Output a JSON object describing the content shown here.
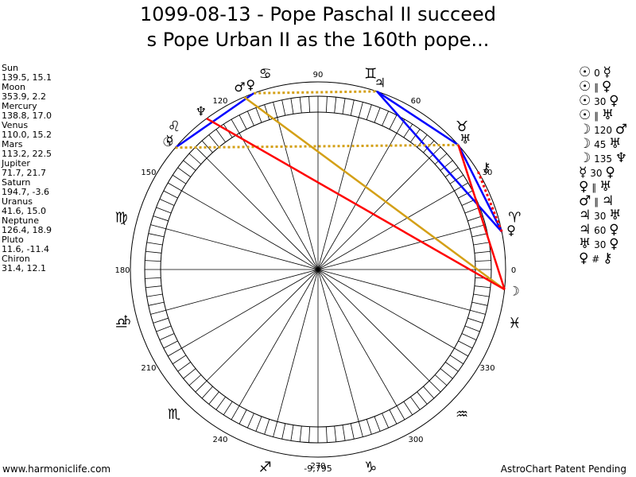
{
  "title_line1": "1099-08-13 - Pope Paschal II succeed",
  "title_line2": "s Pope Urban II as the 160th pope...",
  "planets": [
    {
      "name": "Sun",
      "values": "139.5, 15.1"
    },
    {
      "name": "Moon",
      "values": "353.9, 2.2"
    },
    {
      "name": "Mercury",
      "values": "138.8, 17.0"
    },
    {
      "name": "Venus",
      "values": "110.0, 15.2"
    },
    {
      "name": "Mars",
      "values": "113.2, 22.5"
    },
    {
      "name": "Jupiter",
      "values": "71.7, 21.7"
    },
    {
      "name": "Saturn",
      "values": "194.7, -3.6"
    },
    {
      "name": "Uranus",
      "values": "41.6, 15.0"
    },
    {
      "name": "Neptune",
      "values": "126.4, 18.9"
    },
    {
      "name": "Pluto",
      "values": "11.6, -11.4"
    },
    {
      "name": "Chiron",
      "values": "31.4, 12.1"
    }
  ],
  "aspects": [
    {
      "p1": "☉",
      "aspect": "0",
      "p2": "☿",
      "p1_icon": "sun-icon",
      "p2_icon": "mercury-icon"
    },
    {
      "p1": "☉",
      "aspect": "∥",
      "p2": "♀",
      "p1_icon": "sun-icon",
      "p2_icon": "venus-icon"
    },
    {
      "p1": "☉",
      "aspect": "30",
      "p2": "♀",
      "p1_icon": "sun-icon",
      "p2_icon": "venus-icon"
    },
    {
      "p1": "☉",
      "aspect": "∥",
      "p2": "♅",
      "p1_icon": "sun-icon",
      "p2_icon": "uranus-icon"
    },
    {
      "p1": "☽",
      "aspect": "120",
      "p2": "♂",
      "p1_icon": "moon-icon",
      "p2_icon": "mars-icon"
    },
    {
      "p1": "☽",
      "aspect": "45",
      "p2": "♅",
      "p1_icon": "moon-icon",
      "p2_icon": "uranus-icon"
    },
    {
      "p1": "☽",
      "aspect": "135",
      "p2": "♆",
      "p1_icon": "moon-icon",
      "p2_icon": "neptune-icon"
    },
    {
      "p1": "☿",
      "aspect": "30",
      "p2": "♀",
      "p1_icon": "mercury-icon",
      "p2_icon": "venus-icon"
    },
    {
      "p1": "♀",
      "aspect": "∥",
      "p2": "♅",
      "p1_icon": "venus-icon",
      "p2_icon": "uranus-icon"
    },
    {
      "p1": "♂",
      "aspect": "∥",
      "p2": "♃",
      "p1_icon": "mars-icon",
      "p2_icon": "jupiter-icon"
    },
    {
      "p1": "♃",
      "aspect": "30",
      "p2": "♅",
      "p1_icon": "jupiter-icon",
      "p2_icon": "uranus-icon"
    },
    {
      "p1": "♃",
      "aspect": "60",
      "p2": "♀",
      "p1_icon": "jupiter-icon",
      "p2_icon": "venus-icon"
    },
    {
      "p1": "♅",
      "aspect": "30",
      "p2": "♀",
      "p1_icon": "uranus-icon",
      "p2_icon": "venus-icon"
    },
    {
      "p1": "♀",
      "aspect": "#",
      "p2": "⚷",
      "p1_icon": "venus-icon",
      "p2_icon": "chiron-icon"
    }
  ],
  "wheel": {
    "degree_labels": [
      "0",
      "30",
      "60",
      "90",
      "120",
      "150",
      "180",
      "210",
      "240",
      "270",
      "300",
      "330"
    ],
    "signs": [
      "♈",
      "♉",
      "♊",
      "♋",
      "♌",
      "♍",
      "♎",
      "♏",
      "♐",
      "♑",
      "♒",
      "♓"
    ],
    "sign_names": [
      "aries-icon",
      "taurus-icon",
      "gemini-icon",
      "cancer-icon",
      "leo-icon",
      "virgo-icon",
      "libra-icon",
      "scorpio-icon",
      "sagittarius-icon",
      "capricorn-icon",
      "aquarius-icon",
      "pisces-icon"
    ],
    "planet_glyphs": [
      {
        "glyph": "☉",
        "icon": "sun-icon",
        "lon": 139.5
      },
      {
        "glyph": "☽",
        "icon": "moon-icon",
        "lon": 353.9
      },
      {
        "glyph": "☿",
        "icon": "mercury-icon",
        "lon": 138.8
      },
      {
        "glyph": "♀",
        "icon": "venus-icon",
        "lon": 110.0
      },
      {
        "glyph": "♂",
        "icon": "mars-icon",
        "lon": 113.2
      },
      {
        "glyph": "♃",
        "icon": "jupiter-icon",
        "lon": 71.7
      },
      {
        "glyph": "♄",
        "icon": "saturn-icon",
        "lon": 194.7
      },
      {
        "glyph": "♅",
        "icon": "uranus-icon",
        "lon": 41.6
      },
      {
        "glyph": "♆",
        "icon": "neptune-icon",
        "lon": 126.4
      },
      {
        "glyph": "♀",
        "icon": "pluto-icon",
        "lon": 11.6
      },
      {
        "glyph": "⚷",
        "icon": "chiron-icon",
        "lon": 31.4
      }
    ],
    "aspect_lines": [
      {
        "from": 139.5,
        "to": 110.0,
        "color": "#0000ff",
        "style": "solid"
      },
      {
        "from": 110.0,
        "to": 71.7,
        "color": "#d4a017",
        "style": "dotted"
      },
      {
        "from": 71.7,
        "to": 41.6,
        "color": "#0000ff",
        "style": "solid"
      },
      {
        "from": 71.7,
        "to": 11.6,
        "color": "#0000ff",
        "style": "solid"
      },
      {
        "from": 41.6,
        "to": 11.6,
        "color": "#0000ff",
        "style": "solid"
      },
      {
        "from": 139.5,
        "to": 41.6,
        "color": "#d4a017",
        "style": "dotted"
      },
      {
        "from": 113.2,
        "to": 353.9,
        "color": "#d4a017",
        "style": "solid"
      },
      {
        "from": 126.4,
        "to": 353.9,
        "color": "#ff0000",
        "style": "solid"
      },
      {
        "from": 41.6,
        "to": 353.9,
        "color": "#ff0000",
        "style": "solid"
      },
      {
        "from": 31.4,
        "to": 11.6,
        "color": "#ff0000",
        "style": "dotted"
      }
    ]
  },
  "footer_left": "www.harmoniclife.com",
  "footer_center": "-9,795",
  "footer_right": "AstroChart Patent Pending"
}
